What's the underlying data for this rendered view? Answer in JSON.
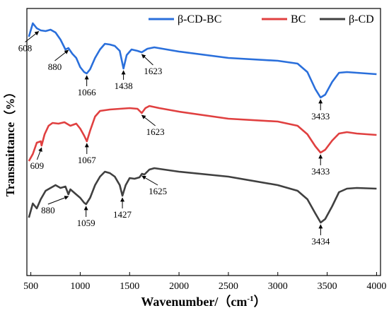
{
  "chart_data": {
    "type": "line",
    "title": "",
    "xlabel": "Wavenumber/（cm",
    "xlabel_sup": "-1",
    "xlabel_close": "）",
    "ylabel": "Transmittance（%）",
    "xlim": [
      460,
      4040
    ],
    "x_ticks": [
      "500",
      "1000",
      "1500",
      "2000",
      "2500",
      "3000",
      "3500",
      "4000"
    ],
    "grid": false,
    "legend": "top-right",
    "series": [
      {
        "name": "β-CD-BC",
        "color": "#2a6fdb",
        "x": [
          480,
          520,
          560,
          600,
          650,
          700,
          750,
          800,
          850,
          880,
          920,
          960,
          1000,
          1040,
          1066,
          1100,
          1150,
          1200,
          1250,
          1300,
          1350,
          1400,
          1438,
          1470,
          1520,
          1580,
          1623,
          1680,
          1750,
          2000,
          2500,
          3000,
          3200,
          3300,
          3380,
          3433,
          3480,
          3550,
          3620,
          3700,
          3800,
          4000
        ],
        "y": [
          52,
          33,
          40,
          43,
          44,
          42,
          46,
          56,
          70,
          68,
          76,
          82,
          95,
          102,
          104,
          98,
          82,
          70,
          62,
          63,
          65,
          72,
          97,
          78,
          70,
          72,
          74,
          69,
          67,
          73,
          82,
          86,
          90,
          102,
          126,
          138,
          134,
          116,
          103,
          102,
          103,
          105
        ]
      },
      {
        "name": "BC",
        "color": "#e04040",
        "x": [
          480,
          520,
          560,
          600,
          609,
          640,
          680,
          720,
          780,
          840,
          900,
          960,
          1000,
          1040,
          1067,
          1100,
          1150,
          1200,
          1300,
          1400,
          1500,
          1580,
          1623,
          1660,
          1700,
          1800,
          2000,
          2500,
          3000,
          3200,
          3300,
          3380,
          3433,
          3480,
          3550,
          3620,
          3700,
          3800,
          4000
        ],
        "y": [
          228,
          218,
          202,
          200,
          206,
          190,
          178,
          174,
          175,
          173,
          178,
          175,
          182,
          192,
          200,
          185,
          165,
          157,
          155,
          154,
          153,
          154,
          160,
          153,
          150,
          153,
          158,
          168,
          172,
          178,
          190,
          207,
          216,
          212,
          199,
          189,
          187,
          189,
          191
        ]
      },
      {
        "name": "β-CD",
        "color": "#404040",
        "x": [
          480,
          520,
          560,
          600,
          650,
          700,
          750,
          800,
          850,
          880,
          900,
          950,
          1000,
          1040,
          1059,
          1100,
          1150,
          1200,
          1250,
          1300,
          1350,
          1400,
          1427,
          1460,
          1500,
          1550,
          1600,
          1625,
          1650,
          1700,
          1750,
          2000,
          2500,
          3000,
          3200,
          3300,
          3380,
          3434,
          3480,
          3550,
          3620,
          3700,
          3800,
          4000
        ],
        "y": [
          308,
          288,
          295,
          282,
          270,
          266,
          262,
          266,
          264,
          275,
          268,
          274,
          280,
          287,
          289,
          280,
          262,
          250,
          243,
          245,
          250,
          262,
          277,
          262,
          252,
          253,
          251,
          246,
          247,
          240,
          238,
          243,
          250,
          262,
          270,
          282,
          302,
          315,
          310,
          292,
          272,
          267,
          266,
          267
        ]
      }
    ],
    "annotations": [
      {
        "label": "608",
        "series": 0,
        "x": 580
      },
      {
        "label": "880",
        "series": 0,
        "x": 880
      },
      {
        "label": "1066",
        "series": 0,
        "x": 1066
      },
      {
        "label": "1438",
        "series": 0,
        "x": 1438
      },
      {
        "label": "1623",
        "series": 0,
        "x": 1623
      },
      {
        "label": "3433",
        "series": 0,
        "x": 3433
      },
      {
        "label": "609",
        "series": 1,
        "x": 609
      },
      {
        "label": "1067",
        "series": 1,
        "x": 1067
      },
      {
        "label": "1623",
        "series": 1,
        "x": 1623
      },
      {
        "label": "3433",
        "series": 1,
        "x": 3433
      },
      {
        "label": "880",
        "series": 2,
        "x": 880
      },
      {
        "label": "1059",
        "series": 2,
        "x": 1059
      },
      {
        "label": "1427",
        "series": 2,
        "x": 1427
      },
      {
        "label": "1625",
        "series": 2,
        "x": 1625
      },
      {
        "label": "3434",
        "series": 2,
        "x": 3434
      }
    ]
  }
}
